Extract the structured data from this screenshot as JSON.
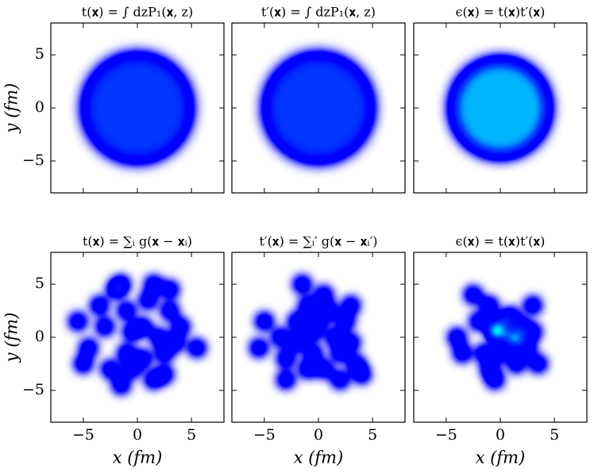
{
  "chart_data": [
    {
      "type": "disk",
      "title": "t(𝐱) = ∫ dzP₁(𝐱, z)",
      "radius": 5,
      "peak": 0.45,
      "xlim": [
        -8,
        8
      ],
      "ylim": [
        -8,
        8
      ],
      "xticks": [
        -5,
        0,
        5
      ],
      "yticks": [
        {
          "value": -5,
          "label": "−5"
        },
        0,
        5
      ],
      "ylabel": "y (fm)",
      "ylabels_shown": true,
      "xlabels_shown": false
    },
    {
      "type": "disk",
      "title": "t′(𝐱) = ∫ dzP₁(𝐱, z)",
      "radius": 5,
      "peak": 0.45,
      "xlim": [
        -8,
        8
      ],
      "ylim": [
        -8,
        8
      ],
      "xticks": [
        -5,
        0,
        5
      ],
      "yticks": [
        -5,
        0,
        5
      ],
      "ylabels_shown": false,
      "xlabels_shown": false
    },
    {
      "type": "disk",
      "title": "ϵ(𝐱) = t(𝐱)t′(𝐱)",
      "radius": 4.5,
      "peak": 0.6,
      "xlim": [
        -8,
        8
      ],
      "ylim": [
        -8,
        8
      ],
      "xticks": [
        -5,
        0,
        5
      ],
      "yticks": [
        -5,
        0,
        5
      ],
      "ylabels_shown": false,
      "xlabels_shown": false
    },
    {
      "type": "blobs",
      "title": "t(𝐱) = ∑ᵢ g(𝐱 − 𝐱ᵢ)",
      "x": [
        -5.5,
        -4.5,
        -5,
        -3.5,
        -3,
        -2,
        -1.5,
        -1,
        -0.5,
        -1,
        -1.5,
        -0.5,
        0.5,
        0.5,
        1,
        1.5,
        2,
        2.5,
        3,
        3,
        3.5,
        2.5,
        4,
        5.5,
        -2.5,
        1.5
      ],
      "y": [
        1.5,
        -1,
        -2.5,
        3,
        1,
        4.5,
        5,
        2.5,
        0.5,
        -1.5,
        -4.5,
        -3,
        -2,
        1,
        3.5,
        5,
        0,
        -1.5,
        2.5,
        4.5,
        -0.5,
        -3.5,
        1,
        -1,
        -3,
        -4
      ],
      "xlim": [
        -8,
        8
      ],
      "ylim": [
        -8,
        8
      ],
      "xticks": [
        {
          "value": -5,
          "label": "−5"
        },
        0,
        5
      ],
      "yticks": [
        {
          "value": -5,
          "label": "−5"
        },
        0,
        5
      ],
      "xlabel": "x (fm)",
      "ylabel": "y (fm)",
      "ylabels_shown": true,
      "xlabels_shown": true
    },
    {
      "type": "blobs",
      "title": "t′(𝐱) = ∑ᵢ′ g(𝐱 − 𝐱ᵢ′)",
      "x": [
        -5.5,
        -5,
        -3,
        -3.5,
        -2,
        -2,
        -1,
        -0.5,
        -0.5,
        0,
        -1,
        -1.5,
        0.5,
        1,
        1.5,
        2,
        2.5,
        3,
        3.5,
        4,
        2,
        0.5,
        3,
        -3
      ],
      "y": [
        -1,
        1.5,
        -2,
        0,
        1.5,
        -0.5,
        -3,
        -1.5,
        0.5,
        1.5,
        3,
        5,
        4,
        2.5,
        0,
        -1.5,
        1.5,
        -0.5,
        -2.5,
        -3.5,
        -4,
        -3,
        3,
        -4
      ],
      "xlim": [
        -8,
        8
      ],
      "ylim": [
        -8,
        8
      ],
      "xticks": [
        {
          "value": -5,
          "label": "−5"
        },
        0,
        5
      ],
      "yticks": [
        -5,
        0,
        5
      ],
      "xlabel": "x (fm)",
      "ylabels_shown": false,
      "xlabels_shown": true
    },
    {
      "type": "blobs",
      "title": "ϵ(𝐱) = t(𝐱)t′(𝐱)",
      "x": [
        -4,
        -3.5,
        -2,
        -1.5,
        -1,
        -1,
        -0.5,
        -0.3,
        -0.3,
        -0.3,
        0.3,
        1.3,
        1.3,
        1.3,
        1,
        2,
        2.5,
        3,
        3,
        3.5,
        1.5,
        -0.5,
        0,
        -2.5
      ],
      "y": [
        0,
        -1.5,
        1.5,
        -1.5,
        3,
        -3,
        0.8,
        0.5,
        0.5,
        0.5,
        1.5,
        -0.1,
        -0.1,
        -0.1,
        2,
        1,
        -1,
        3,
        0.5,
        -2.5,
        -2.5,
        -4,
        -1.5,
        4
      ],
      "xlim": [
        -8,
        8
      ],
      "ylim": [
        -8,
        8
      ],
      "xticks": [
        {
          "value": -5,
          "label": "−5"
        },
        0,
        5
      ],
      "yticks": [
        -5,
        0,
        5
      ],
      "xlabel": "x (fm)",
      "ylabels_shown": false,
      "xlabels_shown": true
    }
  ]
}
